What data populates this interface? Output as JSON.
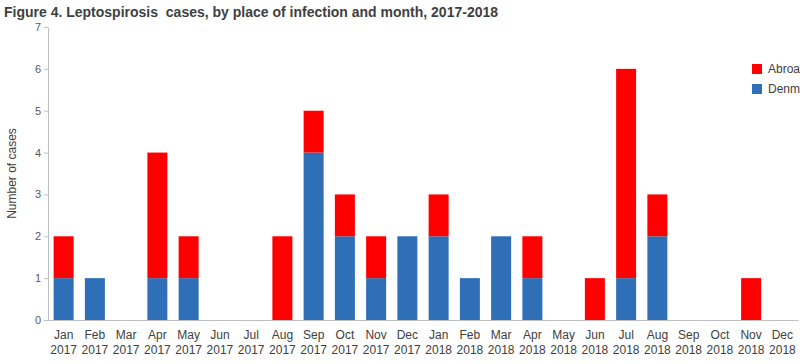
{
  "chart_data": {
    "type": "bar",
    "stacked": true,
    "title": "Figure 4. Leptospirosis  cases, by place of infection and month, 2017-2018",
    "ylabel": "Number of cases",
    "categories": [
      "Jan 2017",
      "Feb 2017",
      "Mar 2017",
      "Apr 2017",
      "May 2017",
      "Jun 2017",
      "Jul 2017",
      "Aug 2017",
      "Sep 2017",
      "Oct 2017",
      "Nov 2017",
      "Dec 2017",
      "Jan 2018",
      "Feb 2018",
      "Mar 2018",
      "Apr 2018",
      "May 2018",
      "Jun 2018",
      "Jul 2018",
      "Aug 2018",
      "Sep 2018",
      "Oct 2018",
      "Nov 2018",
      "Dec 2018"
    ],
    "series": [
      {
        "name": "Denmark",
        "color": "#2e6fb7",
        "values": [
          1,
          1,
          0,
          1,
          1,
          0,
          0,
          0,
          4,
          2,
          1,
          2,
          2,
          1,
          2,
          1,
          0,
          0,
          1,
          2,
          0,
          0,
          0,
          0
        ]
      },
      {
        "name": "Abroad",
        "color": "#ff0000",
        "values": [
          1,
          0,
          0,
          3,
          1,
          0,
          0,
          2,
          1,
          1,
          1,
          0,
          1,
          0,
          0,
          1,
          0,
          1,
          5,
          1,
          0,
          0,
          1,
          0
        ]
      }
    ],
    "ylim": [
      0,
      7
    ],
    "yticks": [
      0,
      1,
      2,
      3,
      4,
      5,
      6,
      7
    ],
    "grid": false,
    "legend": "upper right"
  }
}
